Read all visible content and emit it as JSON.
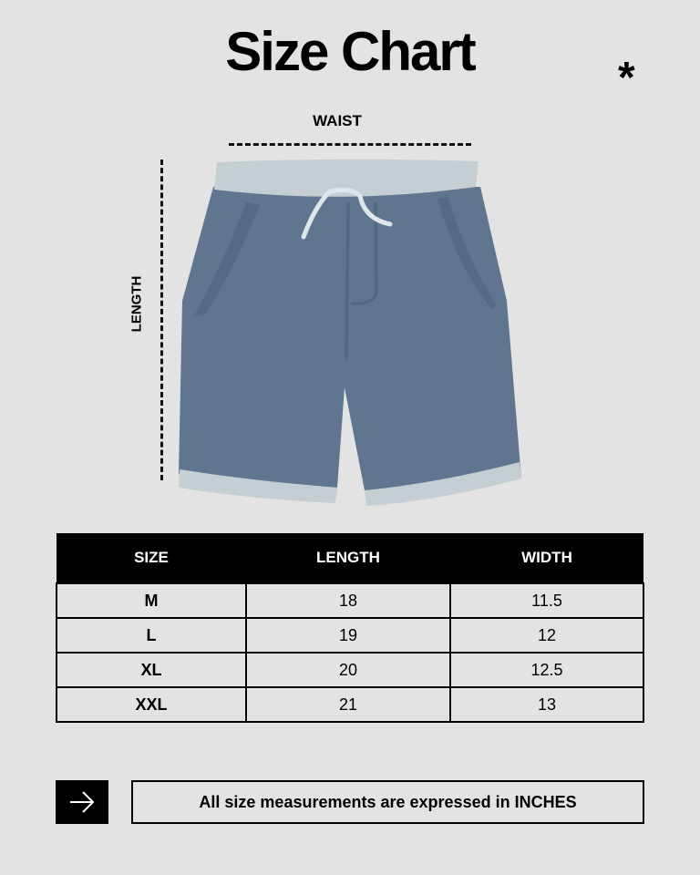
{
  "title": "Size Chart",
  "decor": {
    "asterisk": "*",
    "garment_color": "#5f7590",
    "trim_color": "#c5ced3",
    "background": "#e3e3e3"
  },
  "labels": {
    "waist": "WAIST",
    "length": "LENGTH"
  },
  "table": {
    "headers": [
      "SIZE",
      "LENGTH",
      "WIDTH"
    ],
    "rows": [
      [
        "M",
        "18",
        "11.5"
      ],
      [
        "L",
        "19",
        "12"
      ],
      [
        "XL",
        "20",
        "12.5"
      ],
      [
        "XXL",
        "21",
        "13"
      ]
    ]
  },
  "footer": {
    "icon": "arrow-right-icon",
    "note": "All size measurements are expressed in INCHES"
  }
}
